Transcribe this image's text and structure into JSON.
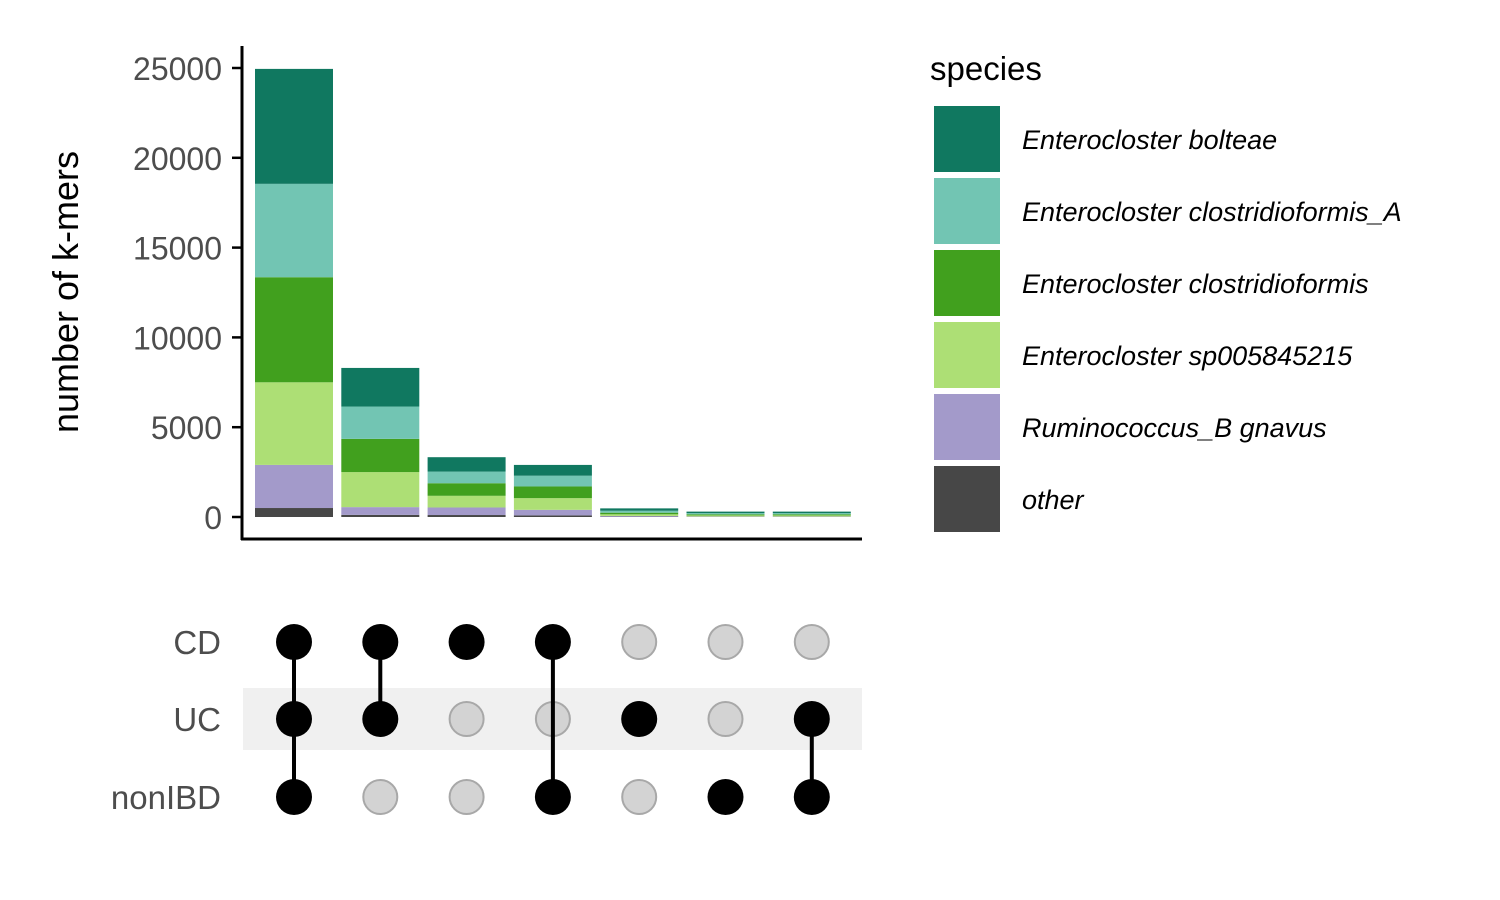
{
  "chart_data": {
    "type": "bar",
    "stacked": true,
    "ylabel": "number of k-mers",
    "ylim": [
      0,
      25000
    ],
    "y_ticks": [
      0,
      5000,
      10000,
      15000,
      20000,
      25000
    ],
    "y_tick_labels": [
      "0",
      "5000",
      "10000",
      "15000",
      "20000",
      "25000"
    ],
    "legend": {
      "title": "species",
      "position": "right"
    },
    "series": [
      {
        "name": "other",
        "color": "#474747",
        "values": [
          500,
          120,
          110,
          90,
          20,
          10,
          10
        ]
      },
      {
        "name": "Ruminococcus_B gnavus",
        "color": "#A39ACA",
        "values": [
          2400,
          430,
          420,
          310,
          40,
          20,
          20
        ]
      },
      {
        "name": "Enterocloster sp005845215",
        "color": "#ADDF75",
        "values": [
          4600,
          1950,
          650,
          650,
          90,
          60,
          60
        ]
      },
      {
        "name": "Enterocloster clostridioformis",
        "color": "#41A01E",
        "values": [
          5850,
          1850,
          700,
          650,
          90,
          60,
          60
        ]
      },
      {
        "name": "Enterocloster clostridioformis_A",
        "color": "#72C5B3",
        "values": [
          5200,
          1800,
          650,
          600,
          110,
          70,
          70
        ]
      },
      {
        "name": "Enterocloster bolteae",
        "color": "#107860",
        "values": [
          6400,
          2150,
          800,
          600,
          130,
          80,
          80
        ]
      }
    ],
    "legend_order": [
      "Enterocloster bolteae",
      "Enterocloster clostridioformis_A",
      "Enterocloster clostridioformis",
      "Enterocloster sp005845215",
      "Ruminococcus_B gnavus",
      "other"
    ],
    "sets": [
      "CD",
      "UC",
      "nonIBD"
    ],
    "set_highlight": "UC",
    "intersections": [
      [
        "CD",
        "UC",
        "nonIBD"
      ],
      [
        "CD",
        "UC"
      ],
      [
        "CD"
      ],
      [
        "CD",
        "nonIBD"
      ],
      [
        "UC"
      ],
      [
        "nonIBD"
      ],
      [
        "UC",
        "nonIBD"
      ]
    ],
    "colors": {
      "active_dot": "#000000",
      "inactive_dot": "#D3D3D3",
      "inactive_dot_border": "#A8A8A8",
      "highlight_band": "#F0F0F0",
      "axis": "#000000",
      "tick_label": "#4D4D4D"
    }
  }
}
